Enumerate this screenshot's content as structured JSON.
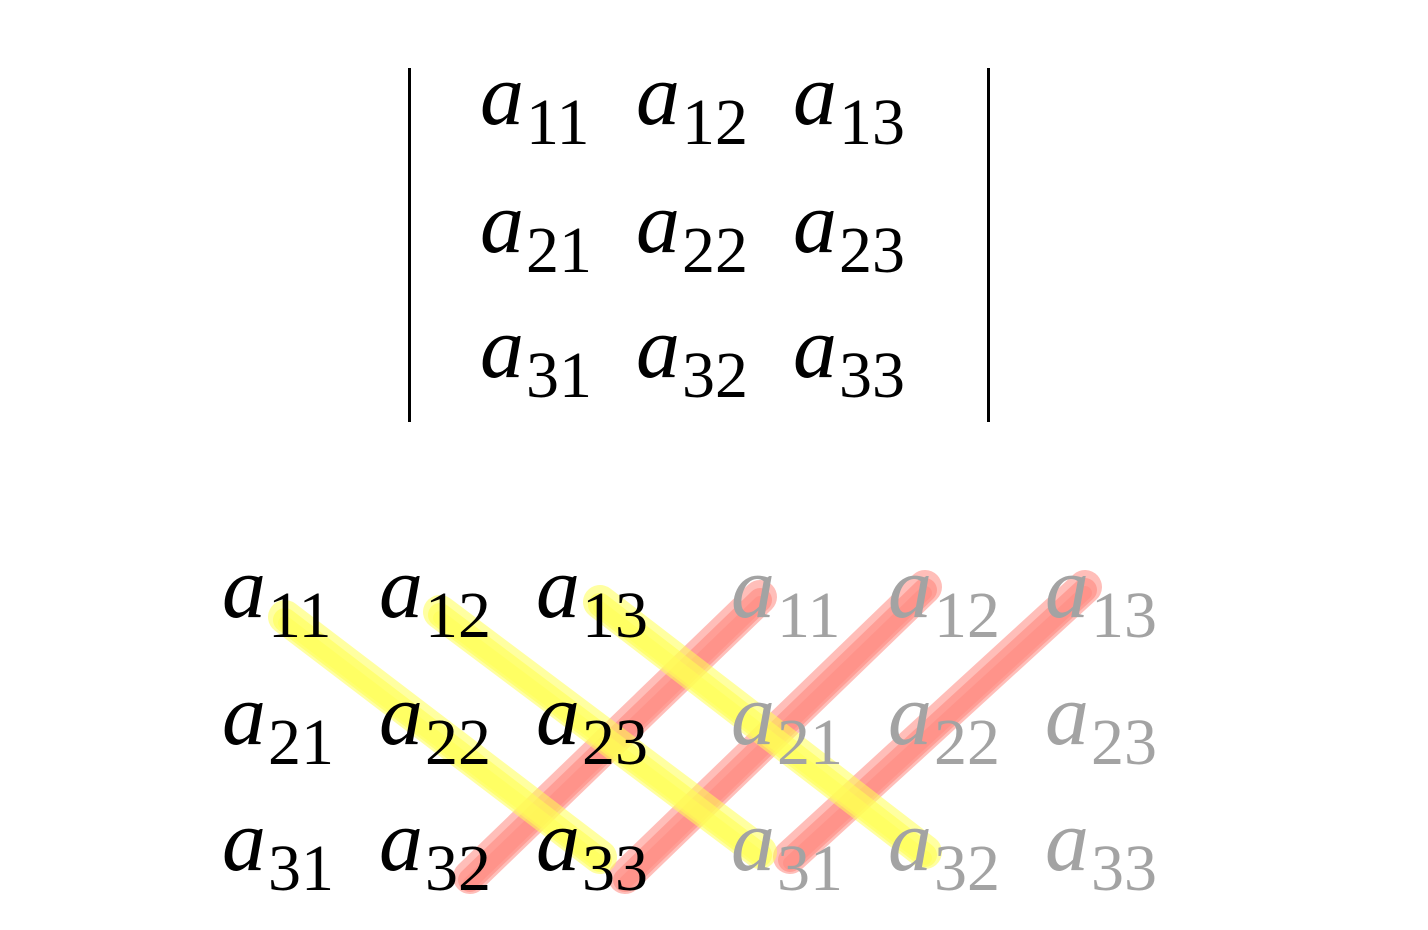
{
  "determinant": {
    "rows": [
      [
        {
          "sym": "a",
          "sub": "11"
        },
        {
          "sym": "a",
          "sub": "12"
        },
        {
          "sym": "a",
          "sub": "13"
        }
      ],
      [
        {
          "sym": "a",
          "sub": "21"
        },
        {
          "sym": "a",
          "sub": "22"
        },
        {
          "sym": "a",
          "sub": "23"
        }
      ],
      [
        {
          "sym": "a",
          "sub": "31"
        },
        {
          "sym": "a",
          "sub": "32"
        },
        {
          "sym": "a",
          "sub": "33"
        }
      ]
    ]
  },
  "sarrus": {
    "rows": [
      [
        {
          "sym": "a",
          "sub": "11"
        },
        {
          "sym": "a",
          "sub": "12"
        },
        {
          "sym": "a",
          "sub": "13"
        },
        {
          "sym": "a",
          "sub": "11"
        },
        {
          "sym": "a",
          "sub": "12"
        },
        {
          "sym": "a",
          "sub": "13"
        }
      ],
      [
        {
          "sym": "a",
          "sub": "21"
        },
        {
          "sym": "a",
          "sub": "22"
        },
        {
          "sym": "a",
          "sub": "23"
        },
        {
          "sym": "a",
          "sub": "21"
        },
        {
          "sym": "a",
          "sub": "22"
        },
        {
          "sym": "a",
          "sub": "23"
        }
      ],
      [
        {
          "sym": "a",
          "sub": "31"
        },
        {
          "sym": "a",
          "sub": "32"
        },
        {
          "sym": "a",
          "sub": "33"
        },
        {
          "sym": "a",
          "sub": "31"
        },
        {
          "sym": "a",
          "sub": "32"
        },
        {
          "sym": "a",
          "sub": "33"
        }
      ]
    ],
    "colors": {
      "main_text": "#000000",
      "ghost_text": "#a3a3a3",
      "positive_diagonal": "#ffff55",
      "negative_diagonal": "#ff8a80"
    }
  }
}
